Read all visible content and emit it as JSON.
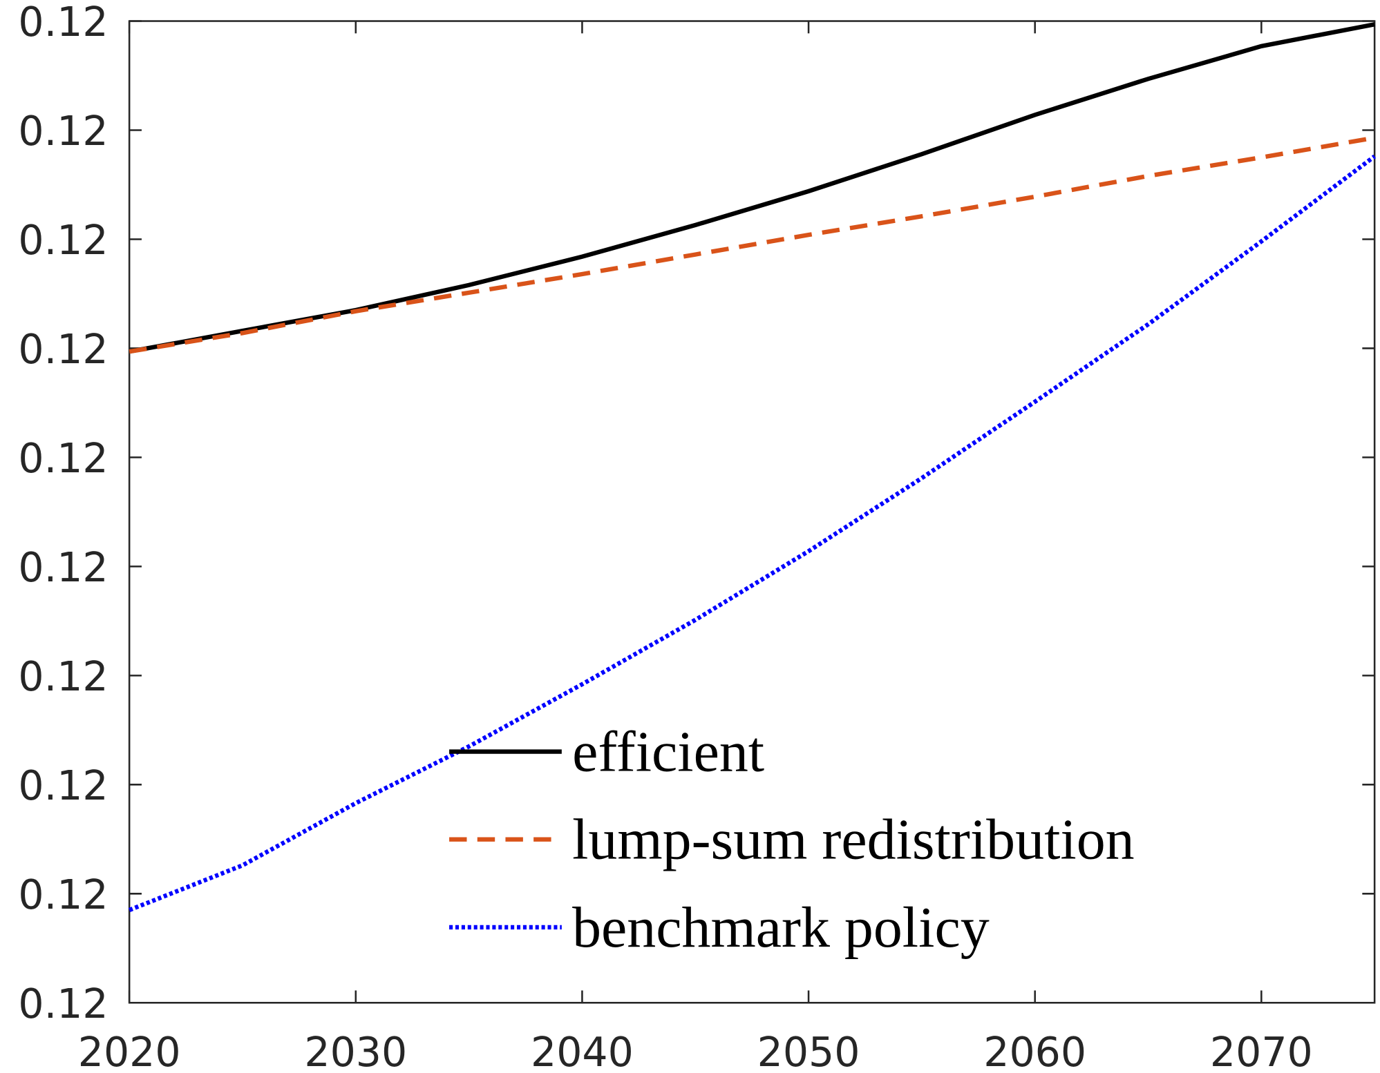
{
  "chart_data": {
    "type": "line",
    "x": [
      2020,
      2025,
      2030,
      2035,
      2040,
      2045,
      2050,
      2055,
      2060,
      2065,
      2070,
      2075
    ],
    "xlim": [
      2020,
      2075
    ],
    "xticks": [
      2020,
      2030,
      2040,
      2050,
      2060,
      2070
    ],
    "ylim": [
      0.12,
      0.1209
    ],
    "yticks": [
      {
        "value": 0.12,
        "label": "0.12"
      },
      {
        "value": 0.1201,
        "label": "0.12"
      },
      {
        "value": 0.1202,
        "label": "0.12"
      },
      {
        "value": 0.1203,
        "label": "0.12"
      },
      {
        "value": 0.1204,
        "label": "0.12"
      },
      {
        "value": 0.1205,
        "label": "0.12"
      },
      {
        "value": 0.1206,
        "label": "0.12"
      },
      {
        "value": 0.1207,
        "label": "0.12"
      },
      {
        "value": 0.1208,
        "label": "0.12"
      },
      {
        "value": 0.1209,
        "label": "0.12"
      }
    ],
    "grid": false,
    "legend": "lower-center",
    "series": [
      {
        "name": "efficient",
        "color": "#000000",
        "dash": "solid",
        "values": [
          0.120597,
          0.120616,
          0.120635,
          0.120658,
          0.120684,
          0.120713,
          0.120744,
          0.120778,
          0.120814,
          0.120847,
          0.120877,
          0.120897
        ]
      },
      {
        "name": "lump-sum redistribution",
        "color": "#d95319",
        "dash": "dashed",
        "values": [
          0.120597,
          0.120614,
          0.120634,
          0.120651,
          0.120668,
          0.120686,
          0.120704,
          0.120721,
          0.120739,
          0.120758,
          0.120775,
          0.120793
        ]
      },
      {
        "name": "benchmark policy",
        "color": "#0000ff",
        "dash": "dotted",
        "values": [
          0.120085,
          0.120126,
          0.120183,
          0.120235,
          0.120292,
          0.120351,
          0.120414,
          0.120481,
          0.120551,
          0.120622,
          0.120698,
          0.120776
        ]
      }
    ]
  }
}
